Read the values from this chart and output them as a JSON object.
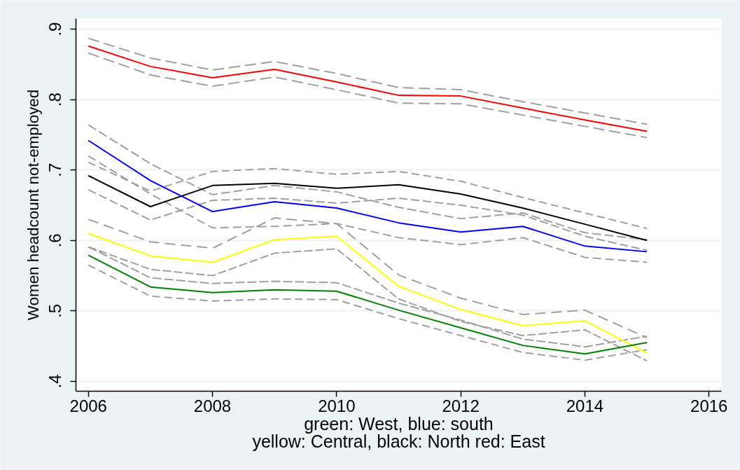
{
  "chart_data": {
    "type": "line",
    "xlabel": "green: West, blue: south\nyellow: Central, black: North red: East",
    "ylabel": "Women headcount not-employed",
    "x": [
      2006,
      2007,
      2008,
      2009,
      2010,
      2011,
      2012,
      2013,
      2014,
      2015
    ],
    "xlim": [
      2005.8,
      2016.2
    ],
    "xticks": [
      2006,
      2008,
      2010,
      2012,
      2014,
      2016
    ],
    "ylim": [
      0.386,
      0.915
    ],
    "yticks": [
      {
        "value": 0.4,
        "label": ".4"
      },
      {
        "value": 0.5,
        "label": ".5"
      },
      {
        "value": 0.6,
        "label": ".6"
      },
      {
        "value": 0.7,
        "label": ".7"
      },
      {
        "value": 0.8,
        "label": ".8"
      },
      {
        "value": 0.9,
        "label": ".9"
      }
    ],
    "grid": "y",
    "series": [
      {
        "color": "#a0a0a0",
        "line_style": "dashed",
        "values": [
          0.887,
          0.859,
          0.842,
          0.854,
          0.837,
          0.817,
          0.814,
          0.797,
          0.781,
          0.765
        ]
      },
      {
        "color": "#a0a0a0",
        "line_style": "dashed",
        "values": [
          0.866,
          0.835,
          0.819,
          0.832,
          0.814,
          0.795,
          0.794,
          0.778,
          0.762,
          0.746
        ]
      },
      {
        "color": "#a0a0a0",
        "line_style": "dashed",
        "values": [
          0.711,
          0.67,
          0.698,
          0.702,
          0.694,
          0.698,
          0.684,
          0.661,
          0.639,
          0.617
        ]
      },
      {
        "color": "#a0a0a0",
        "line_style": "dashed",
        "values": [
          0.672,
          0.629,
          0.657,
          0.66,
          0.653,
          0.66,
          0.65,
          0.636,
          0.606,
          0.586
        ]
      },
      {
        "color": "#a0a0a0",
        "line_style": "dashed",
        "values": [
          0.764,
          0.709,
          0.665,
          0.678,
          0.669,
          0.647,
          0.631,
          0.639,
          0.611,
          0.601
        ]
      },
      {
        "color": "#a0a0a0",
        "line_style": "dashed",
        "values": [
          0.72,
          0.666,
          0.618,
          0.62,
          0.624,
          0.604,
          0.594,
          0.604,
          0.576,
          0.569
        ]
      },
      {
        "color": "#a0a0a0",
        "line_style": "dashed",
        "values": [
          0.63,
          0.598,
          0.589,
          0.632,
          0.624,
          0.551,
          0.518,
          0.495,
          0.501,
          0.462
        ]
      },
      {
        "color": "#a0a0a0",
        "line_style": "dashed",
        "values": [
          0.591,
          0.559,
          0.55,
          0.582,
          0.588,
          0.517,
          0.485,
          0.465,
          0.473,
          0.429
        ]
      },
      {
        "color": "#a0a0a0",
        "line_style": "dashed",
        "values": [
          0.591,
          0.547,
          0.539,
          0.542,
          0.54,
          0.511,
          0.487,
          0.46,
          0.449,
          0.464
        ]
      },
      {
        "color": "#a0a0a0",
        "line_style": "dashed",
        "values": [
          0.565,
          0.521,
          0.514,
          0.517,
          0.516,
          0.489,
          0.465,
          0.441,
          0.43,
          0.445
        ]
      },
      {
        "color": "#ff0000",
        "line_style": "solid",
        "values": [
          0.876,
          0.847,
          0.831,
          0.843,
          0.825,
          0.806,
          0.805,
          0.788,
          0.771,
          0.755
        ]
      },
      {
        "color": "#000000",
        "line_style": "solid",
        "values": [
          0.692,
          0.648,
          0.678,
          0.681,
          0.674,
          0.679,
          0.666,
          0.646,
          0.623,
          0.6
        ]
      },
      {
        "color": "#0000ff",
        "line_style": "solid",
        "values": [
          0.742,
          0.685,
          0.641,
          0.655,
          0.646,
          0.625,
          0.612,
          0.62,
          0.592,
          0.584
        ]
      },
      {
        "color": "#ffff00",
        "line_style": "solid",
        "values": [
          0.61,
          0.578,
          0.569,
          0.601,
          0.606,
          0.535,
          0.502,
          0.479,
          0.486,
          0.44
        ]
      },
      {
        "color": "#008000",
        "line_style": "solid",
        "values": [
          0.579,
          0.534,
          0.526,
          0.53,
          0.528,
          0.501,
          0.476,
          0.451,
          0.439,
          0.455
        ]
      }
    ]
  }
}
